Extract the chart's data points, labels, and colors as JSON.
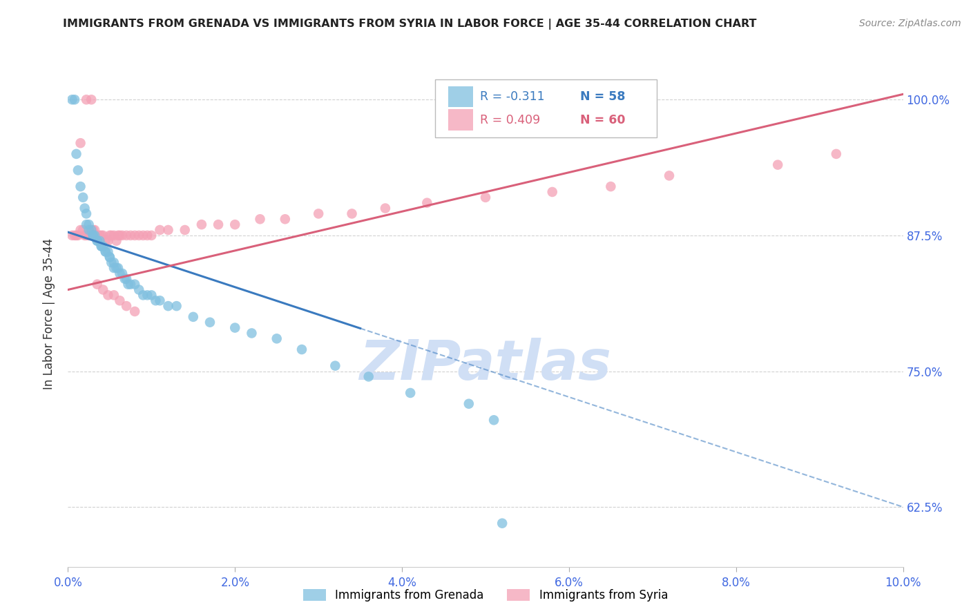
{
  "title": "IMMIGRANTS FROM GRENADA VS IMMIGRANTS FROM SYRIA IN LABOR FORCE | AGE 35-44 CORRELATION CHART",
  "source": "Source: ZipAtlas.com",
  "xlabel_vals": [
    0.0,
    2.0,
    4.0,
    6.0,
    8.0,
    10.0
  ],
  "ylabel": "In Labor Force | Age 35-44",
  "ylabel_vals": [
    62.5,
    75.0,
    87.5,
    100.0
  ],
  "xlim": [
    0.0,
    10.0
  ],
  "ylim": [
    57.0,
    103.5
  ],
  "color_grenada": "#7fbfdf",
  "color_syria": "#f4a0b5",
  "color_grenada_line": "#3a7abf",
  "color_syria_line": "#d9607a",
  "color_axis_text": "#4169E1",
  "color_grid": "#cccccc",
  "color_watermark": "#d0dff5",
  "watermark_text": "ZIPatlas",
  "grenada_solid_end": 3.5,
  "grenada_line_x0": 0.0,
  "grenada_line_y0": 87.8,
  "grenada_line_x1": 10.0,
  "grenada_line_y1": 62.5,
  "syria_line_x0": 0.0,
  "syria_line_y0": 82.5,
  "syria_line_x1": 10.0,
  "syria_line_y1": 100.5,
  "grenada_x": [
    0.05,
    0.08,
    0.1,
    0.12,
    0.15,
    0.18,
    0.2,
    0.22,
    0.22,
    0.25,
    0.25,
    0.28,
    0.3,
    0.3,
    0.32,
    0.35,
    0.35,
    0.38,
    0.4,
    0.4,
    0.42,
    0.45,
    0.45,
    0.48,
    0.5,
    0.5,
    0.52,
    0.55,
    0.55,
    0.58,
    0.6,
    0.62,
    0.65,
    0.68,
    0.7,
    0.72,
    0.75,
    0.8,
    0.85,
    0.9,
    0.95,
    1.0,
    1.05,
    1.1,
    1.2,
    1.3,
    1.5,
    1.7,
    2.0,
    2.2,
    2.5,
    2.8,
    3.2,
    3.6,
    4.1,
    4.8,
    5.1,
    5.2
  ],
  "grenada_y": [
    100.0,
    100.0,
    95.0,
    93.5,
    92.0,
    91.0,
    90.0,
    89.5,
    88.5,
    88.5,
    88.0,
    88.0,
    87.5,
    87.5,
    87.5,
    87.0,
    87.0,
    87.0,
    86.5,
    86.5,
    86.5,
    86.0,
    86.0,
    86.0,
    85.5,
    85.5,
    85.0,
    85.0,
    84.5,
    84.5,
    84.5,
    84.0,
    84.0,
    83.5,
    83.5,
    83.0,
    83.0,
    83.0,
    82.5,
    82.0,
    82.0,
    82.0,
    81.5,
    81.5,
    81.0,
    81.0,
    80.0,
    79.5,
    79.0,
    78.5,
    78.0,
    77.0,
    75.5,
    74.5,
    73.0,
    72.0,
    70.5,
    61.0
  ],
  "syria_x": [
    0.05,
    0.08,
    0.1,
    0.12,
    0.15,
    0.18,
    0.2,
    0.22,
    0.25,
    0.28,
    0.3,
    0.32,
    0.35,
    0.38,
    0.4,
    0.42,
    0.45,
    0.48,
    0.5,
    0.52,
    0.55,
    0.58,
    0.6,
    0.62,
    0.65,
    0.7,
    0.75,
    0.8,
    0.85,
    0.9,
    0.95,
    1.0,
    1.1,
    1.2,
    1.4,
    1.6,
    1.8,
    2.0,
    2.3,
    2.6,
    3.0,
    3.4,
    3.8,
    4.3,
    5.0,
    5.8,
    6.5,
    7.2,
    8.5,
    9.2,
    0.15,
    0.22,
    0.28,
    0.35,
    0.42,
    0.48,
    0.55,
    0.62,
    0.7,
    0.8
  ],
  "syria_y": [
    87.5,
    87.5,
    87.5,
    87.5,
    88.0,
    88.0,
    87.5,
    87.5,
    87.5,
    87.5,
    88.0,
    88.0,
    87.5,
    87.5,
    87.5,
    87.5,
    87.0,
    87.0,
    87.5,
    87.5,
    87.5,
    87.0,
    87.5,
    87.5,
    87.5,
    87.5,
    87.5,
    87.5,
    87.5,
    87.5,
    87.5,
    87.5,
    88.0,
    88.0,
    88.0,
    88.5,
    88.5,
    88.5,
    89.0,
    89.0,
    89.5,
    89.5,
    90.0,
    90.5,
    91.0,
    91.5,
    92.0,
    93.0,
    94.0,
    95.0,
    96.0,
    100.0,
    100.0,
    83.0,
    82.5,
    82.0,
    82.0,
    81.5,
    81.0,
    80.5
  ]
}
